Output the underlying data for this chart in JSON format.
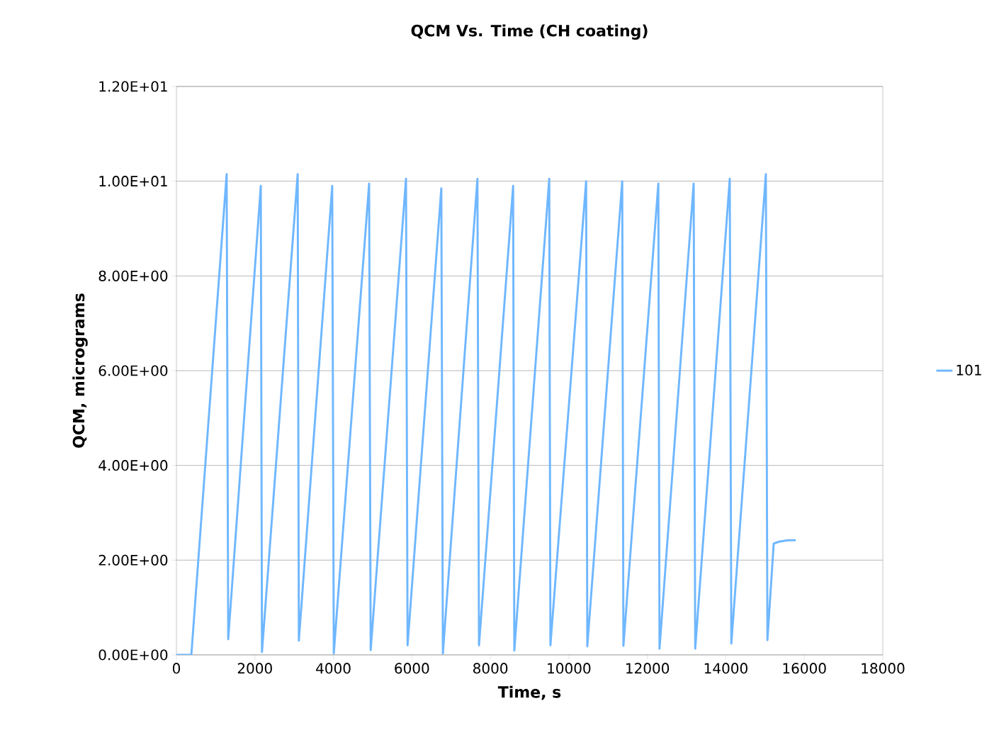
{
  "chart_data": {
    "type": "line",
    "title": "QCM Vs. Time (CH coating)",
    "xlabel": "Time, s",
    "ylabel": "QCM, micrograms",
    "xlim": [
      0,
      18000
    ],
    "xticks": [
      0,
      2000,
      4000,
      6000,
      8000,
      10000,
      12000,
      14000,
      16000,
      18000
    ],
    "ylim": [
      0,
      12
    ],
    "yticks": [
      {
        "value": 0,
        "label": "0.00E+00"
      },
      {
        "value": 2,
        "label": "2.00E+00"
      },
      {
        "value": 4,
        "label": "4.00E+00"
      },
      {
        "value": 6,
        "label": "6.00E+00"
      },
      {
        "value": 8,
        "label": "8.00E+00"
      },
      {
        "value": 10,
        "label": "1.00E+01"
      },
      {
        "value": 12,
        "label": "1.20E+01"
      }
    ],
    "grid": "y",
    "legend": "right",
    "marker": "none",
    "line_style": "solid",
    "series": [
      {
        "name": "101",
        "color": "#6fb7ff",
        "x": [
          0,
          380,
          1280,
          1320,
          2150,
          2180,
          3090,
          3120,
          3970,
          4010,
          4910,
          4950,
          5850,
          5890,
          6750,
          6790,
          7670,
          7710,
          8580,
          8610,
          9500,
          9530,
          10440,
          10470,
          11360,
          11390,
          12280,
          12310,
          13180,
          13220,
          14100,
          14140,
          15020,
          15060,
          15220,
          15360,
          15580,
          15780
        ],
        "values": [
          0,
          0,
          10.15,
          0.33,
          9.9,
          0.06,
          10.15,
          0.3,
          9.9,
          0.03,
          9.95,
          0.1,
          10.05,
          0.2,
          9.85,
          0.03,
          10.05,
          0.2,
          9.9,
          0.09,
          10.05,
          0.2,
          10.0,
          0.18,
          10.0,
          0.19,
          9.95,
          0.13,
          9.95,
          0.13,
          10.05,
          0.24,
          10.15,
          0.31,
          2.35,
          2.39,
          2.42,
          2.42
        ]
      }
    ]
  }
}
